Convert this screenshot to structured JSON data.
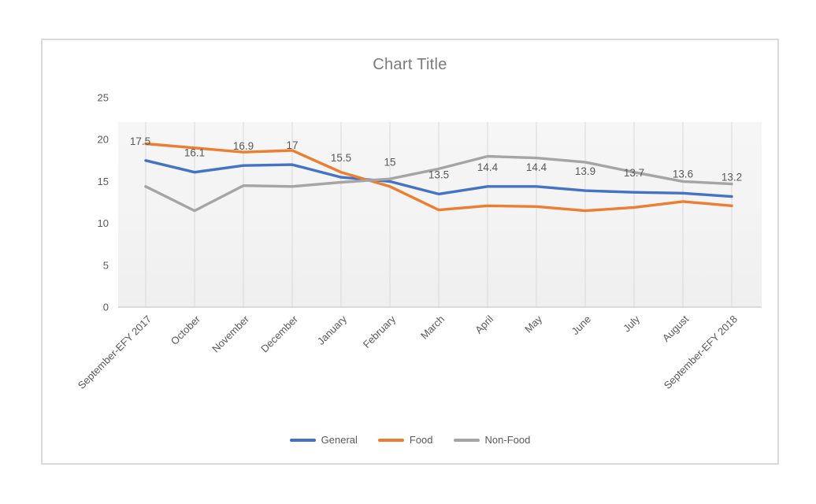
{
  "chart_data": {
    "type": "line",
    "title": "Chart Title",
    "categories": [
      "September-EFY 2017",
      "October",
      "November",
      "December",
      "January",
      "February",
      "March",
      "April",
      "May",
      "June",
      "July",
      "August",
      "September-EFY 2018"
    ],
    "series": [
      {
        "name": "General",
        "color": "#4472C4",
        "data_labels": true,
        "values": [
          17.5,
          16.1,
          16.9,
          17,
          15.5,
          15,
          13.5,
          14.4,
          14.4,
          13.9,
          13.7,
          13.6,
          13.2
        ]
      },
      {
        "name": "Food",
        "color": "#ED7D31",
        "data_labels": false,
        "values": [
          19.5,
          19,
          18.5,
          18.7,
          16.1,
          14.4,
          11.6,
          12.1,
          12,
          11.5,
          11.9,
          12.6,
          12.1
        ]
      },
      {
        "name": "Non-Food",
        "color": "#A5A5A5",
        "data_labels": false,
        "values": [
          14.4,
          11.5,
          14.5,
          14.4,
          14.9,
          15.3,
          16.5,
          18,
          17.8,
          17.3,
          16.1,
          15,
          14.7
        ]
      }
    ],
    "y_ticks": [
      0,
      5,
      10,
      15,
      20,
      25
    ],
    "ylim": [
      0,
      25
    ],
    "legend_position": "bottom",
    "grid": "vertical-only",
    "x_label_rotation": -45
  },
  "colors": {
    "card_border": "#D9D9D9",
    "gridline": "#D9D9D9",
    "axis_line": "#D0D0D0",
    "plot_bg_top": "#F6F6F6",
    "plot_bg_bottom": "#EFEFEF",
    "title_text": "#7B7B7B",
    "axis_text": "#595959",
    "data_label_text": "#595959"
  }
}
